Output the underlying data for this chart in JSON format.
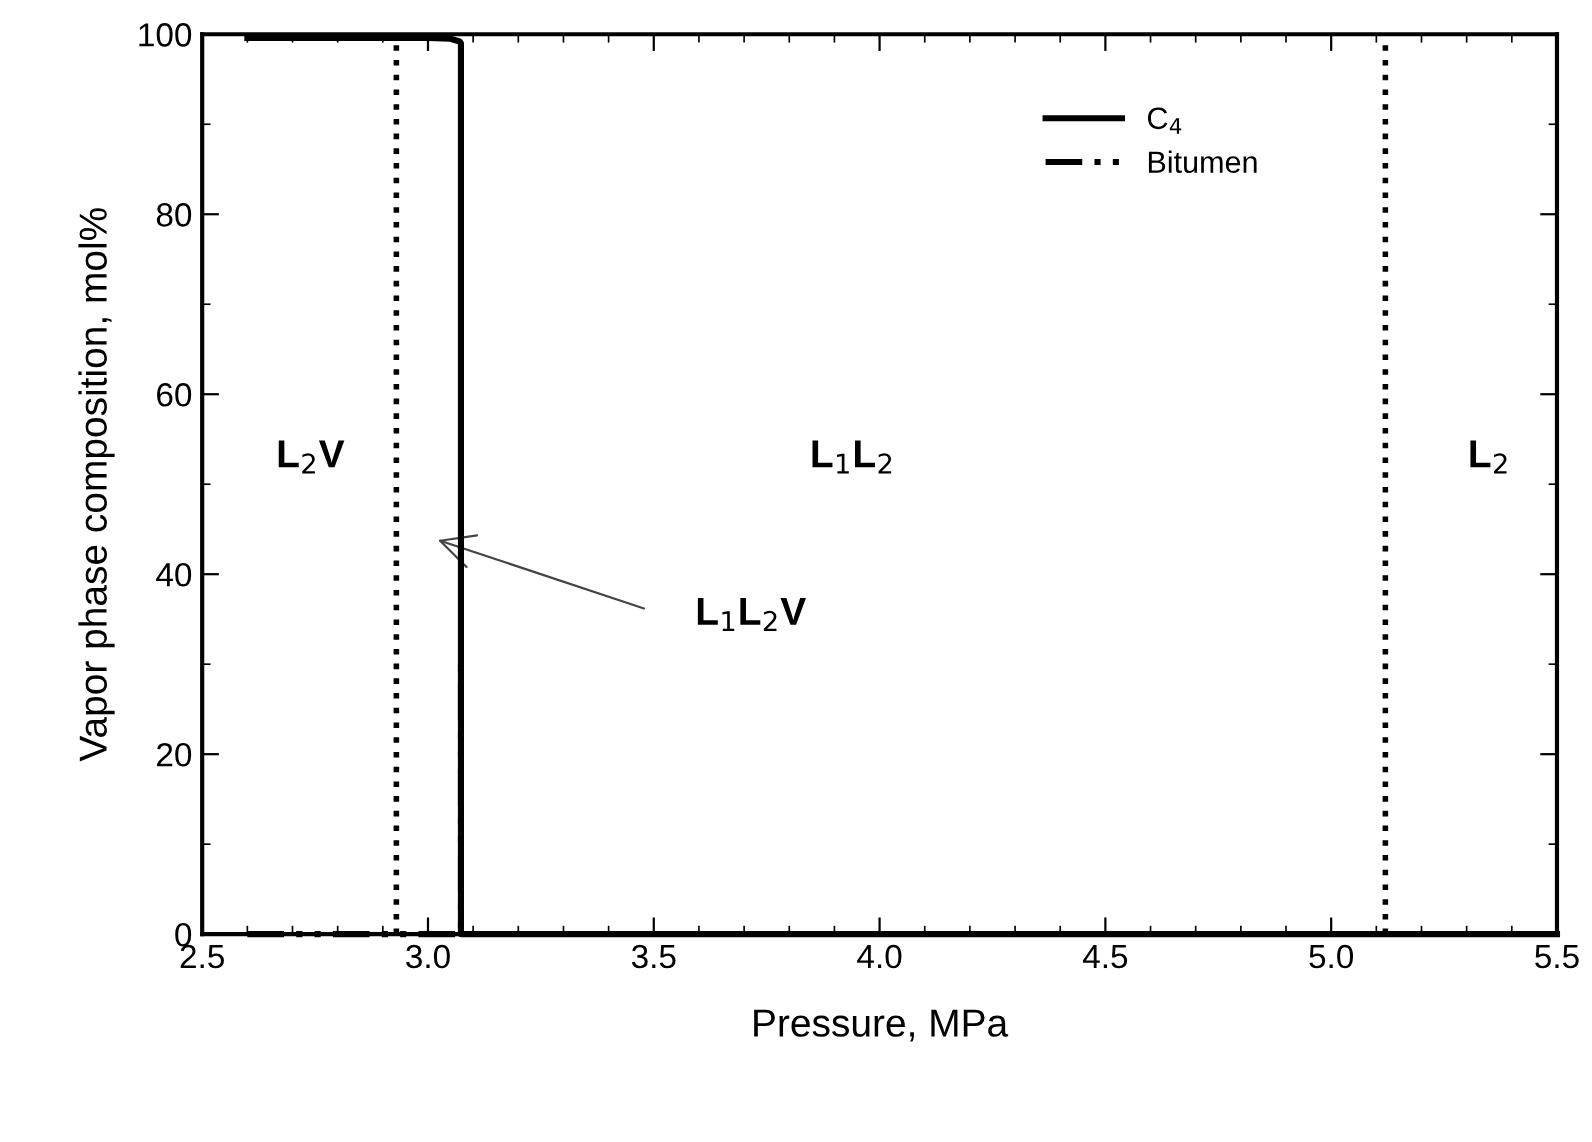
{
  "chart_data": {
    "type": "line",
    "xlabel": "Pressure, MPa",
    "ylabel": "Vapor phase composition, mol%",
    "xlim": [
      2.5,
      5.5
    ],
    "xticks": [
      {
        "value": 2.5,
        "label": "2.5"
      },
      {
        "value": 3.0,
        "label": "3.0"
      },
      {
        "value": 3.5,
        "label": "3.5"
      },
      {
        "value": 4.0,
        "label": "4.0"
      },
      {
        "value": 4.5,
        "label": "4.5"
      },
      {
        "value": 5.0,
        "label": "5.0"
      },
      {
        "value": 5.5,
        "label": "5.5"
      }
    ],
    "ylim": [
      0,
      100
    ],
    "yticks": [
      0,
      20,
      40,
      60,
      80,
      100
    ],
    "series": [
      {
        "name": "C$_{4}$",
        "color": "#000000",
        "line_style": "solid",
        "x": [
          2.6,
          3.0,
          3.05,
          3.07,
          3.073,
          3.073,
          5.5
        ],
        "values": [
          99.6,
          99.6,
          99.5,
          99.2,
          99.0,
          0,
          0
        ]
      },
      {
        "name": "Bitumen",
        "color": "#000000",
        "line_style": "dashdot",
        "x": [
          2.6,
          3.073,
          3.073
        ],
        "values": [
          0,
          0,
          30
        ]
      }
    ],
    "ref_lines": [
      {
        "axis": "x",
        "value": 2.93,
        "label": null,
        "color": "#000000",
        "line_style": "dotted"
      },
      {
        "axis": "x",
        "value": 5.12,
        "label": null,
        "color": "#000000",
        "line_style": "dotted"
      }
    ],
    "annotations": [
      "L$_{2}$V",
      "L$_{1}$L$_{2}$",
      "L$_{2}$",
      "L$_{1}$L$_{2}$V"
    ],
    "legend": "top right",
    "grid": false
  }
}
